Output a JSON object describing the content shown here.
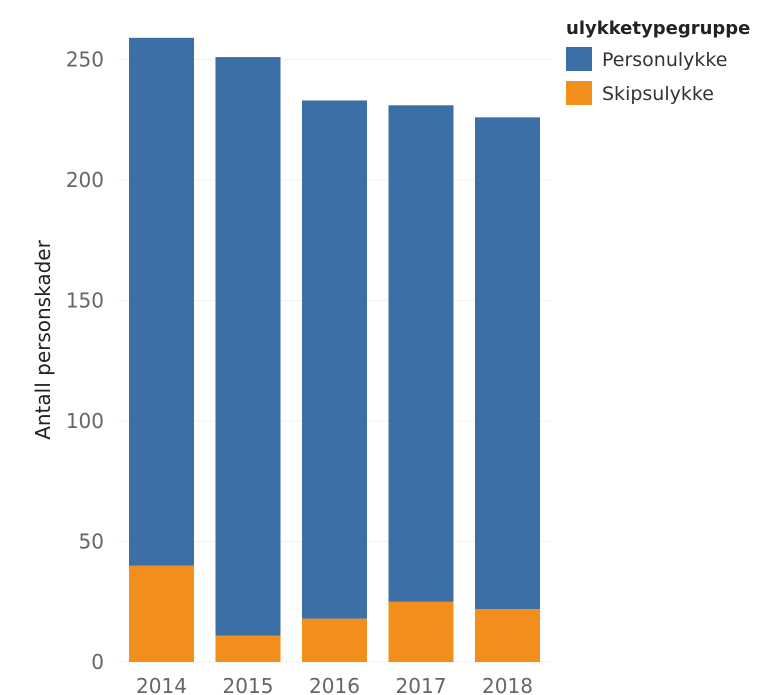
{
  "chart_data": {
    "type": "bar",
    "stacked": true,
    "categories": [
      "2014",
      "2015",
      "2016",
      "2017",
      "2018"
    ],
    "series": [
      {
        "name": "Skipsulykke",
        "color": "#f28e1c",
        "values": [
          40,
          11,
          18,
          25,
          22
        ]
      },
      {
        "name": "Personulykke",
        "color": "#3b6fa5",
        "values": [
          219,
          240,
          215,
          206,
          204
        ]
      }
    ],
    "totals": [
      259,
      251,
      233,
      231,
      226
    ],
    "ylabel": "Antall personskader",
    "yticks": [
      0,
      50,
      100,
      150,
      200,
      250
    ],
    "ylim": [
      0,
      265
    ],
    "grid": true,
    "legend": {
      "title": "ulykketypegruppe",
      "position": "top-right",
      "entries": [
        {
          "label": "Personulykke",
          "color": "#3b6fa5"
        },
        {
          "label": "Skipsulykke",
          "color": "#f28e1c"
        }
      ]
    }
  }
}
